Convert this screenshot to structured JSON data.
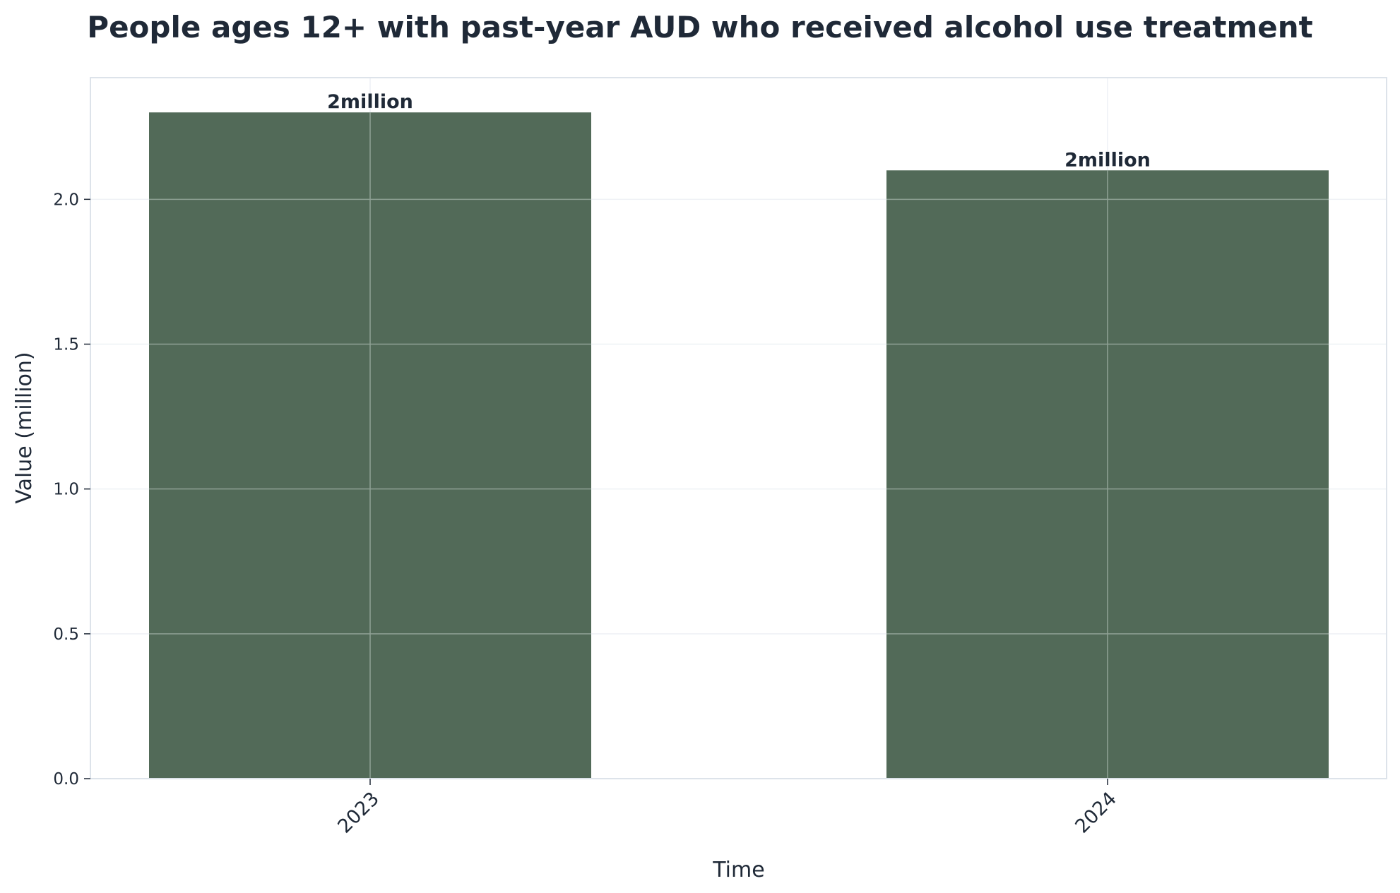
{
  "chart_data": {
    "type": "bar",
    "title": "People ages 12+ with past-year AUD who received alcohol use treatment",
    "xlabel": "Time",
    "ylabel": "Value (million)",
    "categories": [
      "2023",
      "2024"
    ],
    "values": [
      2.3,
      2.1
    ],
    "data_labels": [
      "2million",
      "2million"
    ],
    "ylim": [
      0,
      2.42
    ],
    "yticks": [
      0.0,
      0.5,
      1.0,
      1.5,
      2.0
    ],
    "ytick_labels": [
      "0.0",
      "0.5",
      "1.0",
      "1.5",
      "2.0"
    ],
    "grid": true,
    "x_tick_rotation": "45 degrees",
    "colors": {
      "bar": "#526a58",
      "text": "#1f2937",
      "frame": "#dde3ea",
      "grid_outside": "#eef1f5",
      "grid_on_bar": "#8fa195"
    }
  }
}
